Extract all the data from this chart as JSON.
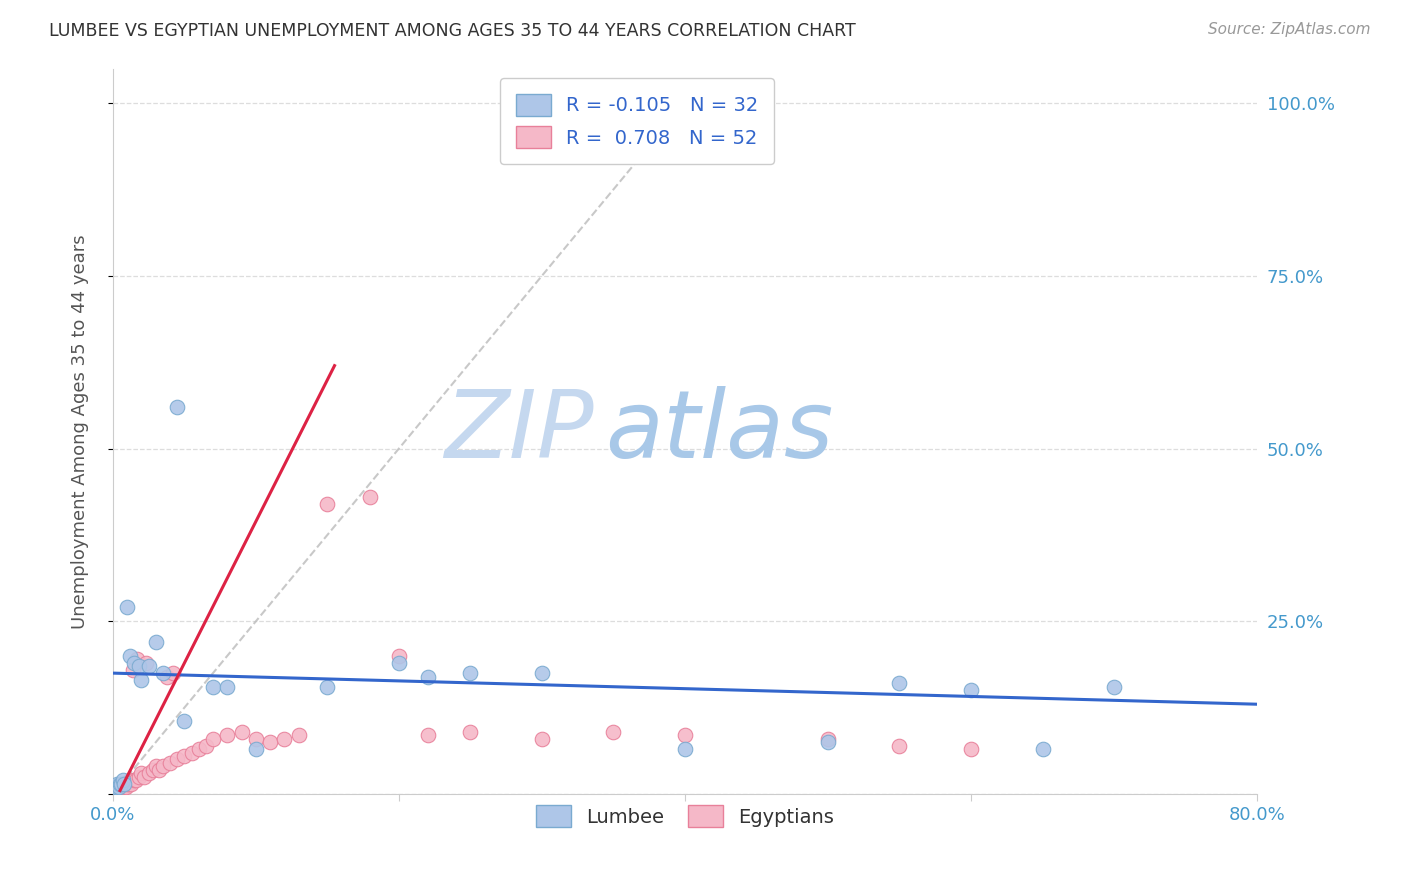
{
  "title": "LUMBEE VS EGYPTIAN UNEMPLOYMENT AMONG AGES 35 TO 44 YEARS CORRELATION CHART",
  "source": "Source: ZipAtlas.com",
  "ylabel": "Unemployment Among Ages 35 to 44 years",
  "xlim": [
    0.0,
    0.8
  ],
  "ylim": [
    0.0,
    1.05
  ],
  "xticks": [
    0.0,
    0.2,
    0.4,
    0.6,
    0.8
  ],
  "xticklabels": [
    "0.0%",
    "",
    "",
    "",
    "80.0%"
  ],
  "yticks": [
    0.0,
    0.25,
    0.5,
    0.75,
    1.0
  ],
  "yticklabels": [
    "",
    "25.0%",
    "50.0%",
    "75.0%",
    "100.0%"
  ],
  "lumbee_color": "#aec6e8",
  "egyptian_color": "#f5b8c8",
  "lumbee_edge": "#7aaad0",
  "egyptian_edge": "#e8809a",
  "trend_lumbee_color": "#3366cc",
  "trend_egyptian_color": "#dd2244",
  "trend_dashed_color": "#bbbbbb",
  "watermark_zip": "ZIP",
  "watermark_atlas": "atlas",
  "legend_line1": "R = -0.105   N = 32",
  "legend_line2": "R =  0.708   N = 52",
  "lumbee_x": [
    0.001,
    0.002,
    0.003,
    0.004,
    0.005,
    0.006,
    0.007,
    0.008,
    0.01,
    0.012,
    0.015,
    0.018,
    0.02,
    0.025,
    0.05,
    0.07,
    0.1,
    0.15,
    0.2,
    0.22,
    0.25,
    0.3,
    0.4,
    0.5,
    0.6,
    0.65,
    0.55,
    0.7,
    0.03,
    0.035,
    0.045,
    0.08
  ],
  "lumbee_y": [
    0.01,
    0.01,
    0.015,
    0.01,
    0.015,
    0.015,
    0.02,
    0.015,
    0.27,
    0.2,
    0.19,
    0.185,
    0.165,
    0.185,
    0.105,
    0.155,
    0.065,
    0.155,
    0.19,
    0.17,
    0.175,
    0.175,
    0.065,
    0.075,
    0.15,
    0.065,
    0.16,
    0.155,
    0.22,
    0.175,
    0.56,
    0.155
  ],
  "egyptian_x": [
    0.001,
    0.002,
    0.003,
    0.004,
    0.005,
    0.006,
    0.007,
    0.008,
    0.009,
    0.01,
    0.011,
    0.012,
    0.013,
    0.015,
    0.016,
    0.018,
    0.02,
    0.022,
    0.025,
    0.028,
    0.03,
    0.032,
    0.035,
    0.04,
    0.045,
    0.05,
    0.055,
    0.06,
    0.065,
    0.07,
    0.08,
    0.09,
    0.1,
    0.11,
    0.12,
    0.13,
    0.15,
    0.18,
    0.2,
    0.22,
    0.25,
    0.3,
    0.35,
    0.4,
    0.5,
    0.55,
    0.6,
    0.014,
    0.017,
    0.023,
    0.038,
    0.042
  ],
  "egyptian_y": [
    0.01,
    0.01,
    0.01,
    0.01,
    0.01,
    0.01,
    0.01,
    0.01,
    0.01,
    0.015,
    0.015,
    0.02,
    0.015,
    0.02,
    0.02,
    0.025,
    0.03,
    0.025,
    0.03,
    0.035,
    0.04,
    0.035,
    0.04,
    0.045,
    0.05,
    0.055,
    0.06,
    0.065,
    0.07,
    0.08,
    0.085,
    0.09,
    0.08,
    0.075,
    0.08,
    0.085,
    0.42,
    0.43,
    0.2,
    0.085,
    0.09,
    0.08,
    0.09,
    0.085,
    0.08,
    0.07,
    0.065,
    0.18,
    0.195,
    0.19,
    0.17,
    0.175
  ],
  "background_color": "#ffffff",
  "grid_color": "#dddddd",
  "title_color": "#333333",
  "axis_label_color": "#555555",
  "tick_label_color": "#4499cc"
}
